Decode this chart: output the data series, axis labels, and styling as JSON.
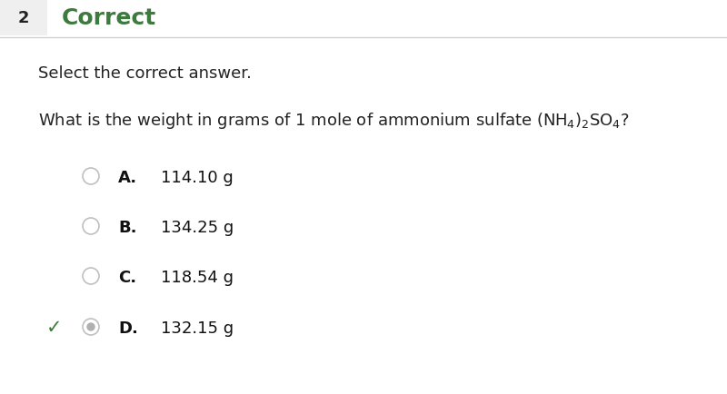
{
  "background_color": "#ffffff",
  "header_bg_color": "#f0f0f0",
  "question_number": "2",
  "header_text": "Correct",
  "header_color": "#3d7a3d",
  "header_font_size": 18,
  "subtitle": "Select the correct answer.",
  "subtitle_fontsize": 13,
  "question_text": "What is the weight in grams of 1 mole of ammonium sulfate (NH$_4$)$_2$SO$_4$?",
  "question_fontsize": 13,
  "options": [
    {
      "label": "A.",
      "text": "114.10 g",
      "correct": false
    },
    {
      "label": "B.",
      "text": "134.25 g",
      "correct": false
    },
    {
      "label": "C.",
      "text": "118.54 g",
      "correct": false
    },
    {
      "label": "D.",
      "text": "132.15 g",
      "correct": true
    }
  ],
  "option_fontsize": 13,
  "circle_color": "#c0c0c0",
  "correct_dot_color": "#b0b0b0",
  "checkmark_color": "#3d7a3d",
  "number_fontsize": 13,
  "number_color": "#222222"
}
